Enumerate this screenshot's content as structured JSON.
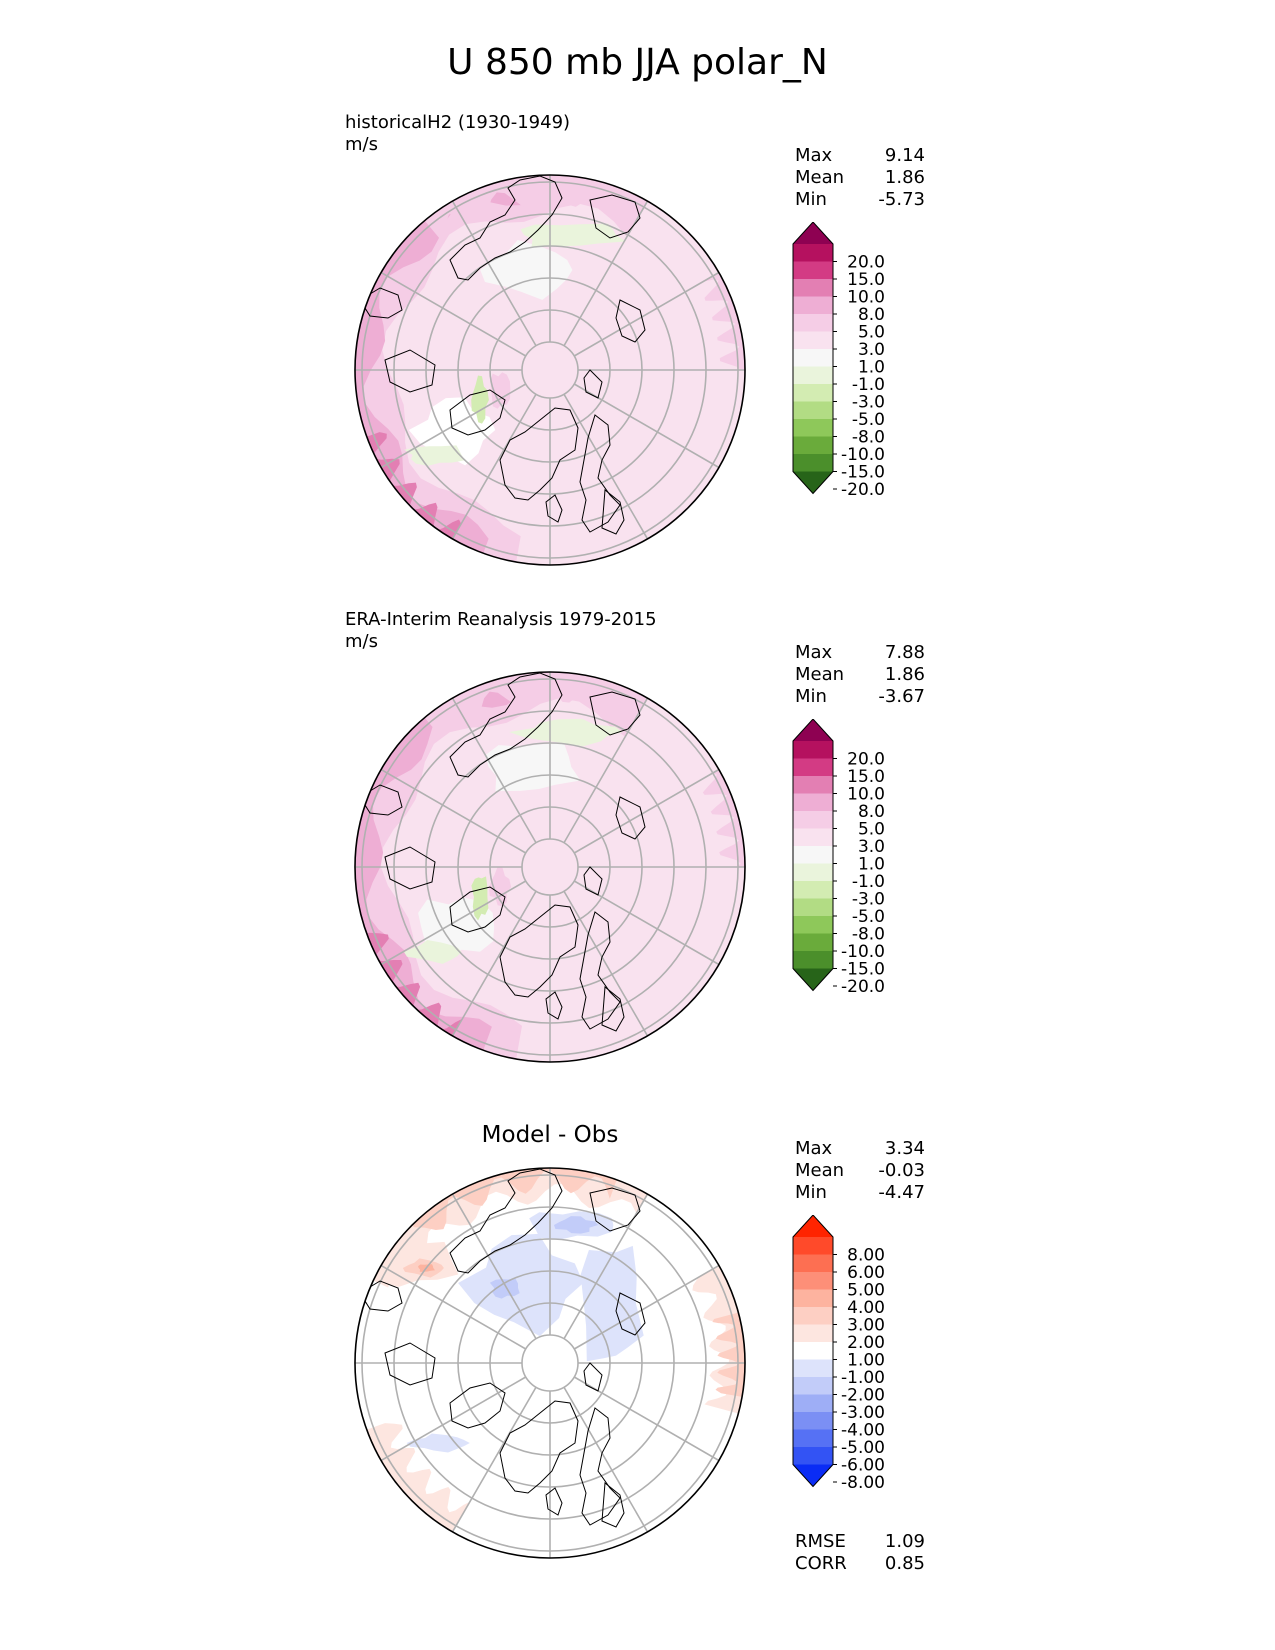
{
  "title": "U 850 mb JJA polar_N",
  "panels": [
    {
      "title_line1": "historicalH2 (1930-1949)",
      "title_line2": "m/s",
      "center_title": "",
      "stats": {
        "max_label": "Max",
        "max": "9.14",
        "mean_label": "Mean",
        "mean": "1.86",
        "min_label": "Min",
        "min": "-5.73"
      },
      "colorbar": {
        "labels": [
          "20.0",
          "15.0",
          "10.0",
          "8.0",
          "5.0",
          "3.0",
          "1.0",
          "-1.0",
          "-3.0",
          "-5.0",
          "-8.0",
          "-10.0",
          "-15.0",
          "-20.0"
        ],
        "colors": [
          "#8e0152",
          "#b5115f",
          "#d33b84",
          "#e37fb3",
          "#eeaed4",
          "#f5cde6",
          "#f9e2ef",
          "#f7f7f7",
          "#eaf4dc",
          "#d3ecb2",
          "#b2dc84",
          "#8ec85a",
          "#6aab3b",
          "#4b8f2b",
          "#276419"
        ]
      }
    },
    {
      "title_line1": "ERA-Interim Reanalysis 1979-2015",
      "title_line2": "m/s",
      "center_title": "",
      "stats": {
        "max_label": "Max",
        "max": "7.88",
        "mean_label": "Mean",
        "mean": "1.86",
        "min_label": "Min",
        "min": "-3.67"
      },
      "colorbar": {
        "labels": [
          "20.0",
          "15.0",
          "10.0",
          "8.0",
          "5.0",
          "3.0",
          "1.0",
          "-1.0",
          "-3.0",
          "-5.0",
          "-8.0",
          "-10.0",
          "-15.0",
          "-20.0"
        ],
        "colors": [
          "#8e0152",
          "#b5115f",
          "#d33b84",
          "#e37fb3",
          "#eeaed4",
          "#f5cde6",
          "#f9e2ef",
          "#f7f7f7",
          "#eaf4dc",
          "#d3ecb2",
          "#b2dc84",
          "#8ec85a",
          "#6aab3b",
          "#4b8f2b",
          "#276419"
        ]
      }
    },
    {
      "title_line1": "",
      "title_line2": "",
      "center_title": "Model - Obs",
      "stats": {
        "max_label": "Max",
        "max": "3.34",
        "mean_label": "Mean",
        "mean": "-0.03",
        "min_label": "Min",
        "min": "-4.47"
      },
      "colorbar": {
        "labels": [
          "8.00",
          "6.00",
          "5.00",
          "4.00",
          "3.00",
          "2.00",
          "1.00",
          "-1.00",
          "-2.00",
          "-3.00",
          "-4.00",
          "-5.00",
          "-6.00",
          "-8.00"
        ],
        "colors": [
          "#ff2400",
          "#ff4a2a",
          "#fd6f52",
          "#fd8f78",
          "#fdb39f",
          "#fdcfc3",
          "#fde6e0",
          "#ffffff",
          "#dde3fb",
          "#c2ccf9",
          "#9eaef6",
          "#7b8ff4",
          "#5671f4",
          "#3353f4",
          "#0a2cf5"
        ]
      },
      "rmse_label": "RMSE",
      "rmse": "1.09",
      "corr_label": "CORR",
      "corr": "0.85"
    }
  ],
  "chart_data": [
    {
      "type": "heatmap",
      "title": "historicalH2 (1930-1949)",
      "units": "m/s",
      "projection": "north polar stereographic",
      "levels": [
        -20,
        -15,
        -10,
        -8,
        -5,
        -3,
        -1,
        1,
        3,
        5,
        8,
        10,
        15,
        20
      ],
      "max": 9.14,
      "mean": 1.86,
      "min": -5.73
    },
    {
      "type": "heatmap",
      "title": "ERA-Interim Reanalysis 1979-2015",
      "units": "m/s",
      "projection": "north polar stereographic",
      "levels": [
        -20,
        -15,
        -10,
        -8,
        -5,
        -3,
        -1,
        1,
        3,
        5,
        8,
        10,
        15,
        20
      ],
      "max": 7.88,
      "mean": 1.86,
      "min": -3.67
    },
    {
      "type": "heatmap",
      "title": "Model - Obs",
      "projection": "north polar stereographic",
      "levels": [
        -8,
        -6,
        -5,
        -4,
        -3,
        -2,
        -1,
        1,
        2,
        3,
        4,
        5,
        6,
        8
      ],
      "max": 3.34,
      "mean": -0.03,
      "min": -4.47,
      "rmse": 1.09,
      "corr": 0.85
    }
  ]
}
